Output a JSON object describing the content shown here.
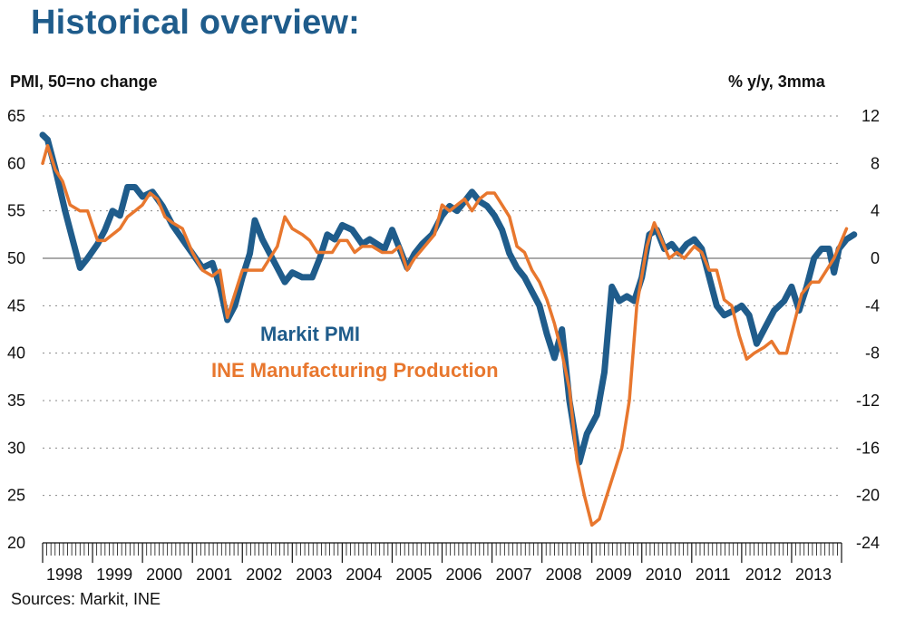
{
  "page": {
    "title": "Historical overview:",
    "source": "Sources: Markit, INE"
  },
  "chart_data": {
    "type": "line",
    "left_axis_label": "PMI, 50=no change",
    "right_axis_label": "% y/y, 3mma",
    "y_left": {
      "min": 20,
      "max": 65,
      "ticks": [
        65,
        60,
        55,
        50,
        45,
        40,
        35,
        30,
        25,
        20
      ]
    },
    "y_right": {
      "min": -24,
      "max": 12,
      "ticks": [
        12,
        8,
        4,
        0,
        -4,
        -8,
        -12,
        -16,
        -20,
        -24
      ]
    },
    "x_start": 1998.0,
    "x_end": 2014.0,
    "years": [
      "1998",
      "1999",
      "2000",
      "2001",
      "2002",
      "2003",
      "2004",
      "2005",
      "2006",
      "2007",
      "2008",
      "2009",
      "2010",
      "2011",
      "2012",
      "2013"
    ],
    "colors": {
      "pmi": "#1f5c8b",
      "ine": "#e8772e",
      "grid": "#888888"
    },
    "series": [
      {
        "name": "Markit PMI",
        "axis": "left",
        "points": [
          [
            1998.0,
            63.0
          ],
          [
            1998.1,
            62.5
          ],
          [
            1998.25,
            59.5
          ],
          [
            1998.45,
            55.0
          ],
          [
            1998.6,
            52.0
          ],
          [
            1998.75,
            49.0
          ],
          [
            1998.9,
            50.0
          ],
          [
            1999.1,
            51.5
          ],
          [
            1999.25,
            53.0
          ],
          [
            1999.4,
            55.0
          ],
          [
            1999.55,
            54.5
          ],
          [
            1999.7,
            57.5
          ],
          [
            1999.85,
            57.5
          ],
          [
            2000.0,
            56.5
          ],
          [
            2000.2,
            57.0
          ],
          [
            2000.4,
            55.5
          ],
          [
            2000.6,
            53.5
          ],
          [
            2000.8,
            52.0
          ],
          [
            2001.0,
            50.5
          ],
          [
            2001.2,
            49.0
          ],
          [
            2001.4,
            49.5
          ],
          [
            2001.55,
            47.0
          ],
          [
            2001.7,
            43.5
          ],
          [
            2001.85,
            45.0
          ],
          [
            2002.0,
            48.0
          ],
          [
            2002.15,
            50.5
          ],
          [
            2002.25,
            54.0
          ],
          [
            2002.4,
            52.0
          ],
          [
            2002.55,
            50.5
          ],
          [
            2002.7,
            49.0
          ],
          [
            2002.85,
            47.5
          ],
          [
            2003.0,
            48.5
          ],
          [
            2003.2,
            48.0
          ],
          [
            2003.4,
            48.0
          ],
          [
            2003.55,
            50.0
          ],
          [
            2003.7,
            52.5
          ],
          [
            2003.85,
            52.0
          ],
          [
            2004.0,
            53.5
          ],
          [
            2004.2,
            53.0
          ],
          [
            2004.4,
            51.5
          ],
          [
            2004.55,
            52.0
          ],
          [
            2004.7,
            51.5
          ],
          [
            2004.85,
            51.0
          ],
          [
            2005.0,
            53.0
          ],
          [
            2005.15,
            51.0
          ],
          [
            2005.3,
            49.0
          ],
          [
            2005.45,
            50.5
          ],
          [
            2005.6,
            51.5
          ],
          [
            2005.8,
            52.5
          ],
          [
            2006.0,
            54.5
          ],
          [
            2006.15,
            55.5
          ],
          [
            2006.3,
            55.0
          ],
          [
            2006.45,
            56.0
          ],
          [
            2006.6,
            57.0
          ],
          [
            2006.75,
            56.0
          ],
          [
            2006.9,
            55.5
          ],
          [
            2007.05,
            54.5
          ],
          [
            2007.2,
            53.0
          ],
          [
            2007.35,
            50.5
          ],
          [
            2007.5,
            49.0
          ],
          [
            2007.65,
            48.0
          ],
          [
            2007.8,
            46.5
          ],
          [
            2007.95,
            45.0
          ],
          [
            2008.1,
            42.0
          ],
          [
            2008.25,
            39.5
          ],
          [
            2008.4,
            42.5
          ],
          [
            2008.55,
            35.0
          ],
          [
            2008.75,
            28.5
          ],
          [
            2008.9,
            31.5
          ],
          [
            2009.1,
            33.5
          ],
          [
            2009.25,
            38.0
          ],
          [
            2009.4,
            47.0
          ],
          [
            2009.55,
            45.5
          ],
          [
            2009.7,
            46.0
          ],
          [
            2009.85,
            45.5
          ],
          [
            2010.0,
            48.0
          ],
          [
            2010.15,
            52.5
          ],
          [
            2010.3,
            53.0
          ],
          [
            2010.45,
            51.0
          ],
          [
            2010.6,
            51.5
          ],
          [
            2010.75,
            50.5
          ],
          [
            2010.9,
            51.5
          ],
          [
            2011.05,
            52.0
          ],
          [
            2011.2,
            51.0
          ],
          [
            2011.35,
            48.0
          ],
          [
            2011.5,
            45.0
          ],
          [
            2011.65,
            44.0
          ],
          [
            2011.85,
            44.5
          ],
          [
            2012.0,
            45.0
          ],
          [
            2012.15,
            44.0
          ],
          [
            2012.3,
            41.0
          ],
          [
            2012.5,
            43.0
          ],
          [
            2012.65,
            44.5
          ],
          [
            2012.85,
            45.5
          ],
          [
            2013.0,
            47.0
          ],
          [
            2013.15,
            44.5
          ],
          [
            2013.3,
            47.0
          ],
          [
            2013.45,
            50.0
          ],
          [
            2013.6,
            51.0
          ],
          [
            2013.75,
            51.0
          ],
          [
            2013.85,
            48.5
          ],
          [
            2013.95,
            51.0
          ],
          [
            2014.1,
            52.0
          ],
          [
            2014.25,
            52.5
          ]
        ]
      },
      {
        "name": "INE Manufacturing Production",
        "axis": "right",
        "points": [
          [
            1998.0,
            8.0
          ],
          [
            1998.1,
            9.5
          ],
          [
            1998.25,
            7.5
          ],
          [
            1998.4,
            6.5
          ],
          [
            1998.55,
            4.5
          ],
          [
            1998.75,
            4.0
          ],
          [
            1998.9,
            4.0
          ],
          [
            1999.1,
            1.5
          ],
          [
            1999.25,
            1.5
          ],
          [
            1999.4,
            2.0
          ],
          [
            1999.55,
            2.5
          ],
          [
            1999.7,
            3.5
          ],
          [
            1999.85,
            4.0
          ],
          [
            2000.0,
            4.5
          ],
          [
            2000.15,
            5.5
          ],
          [
            2000.3,
            5.0
          ],
          [
            2000.45,
            3.5
          ],
          [
            2000.6,
            3.0
          ],
          [
            2000.8,
            2.5
          ],
          [
            2001.0,
            0.5
          ],
          [
            2001.2,
            -1.0
          ],
          [
            2001.4,
            -1.5
          ],
          [
            2001.55,
            -1.0
          ],
          [
            2001.7,
            -5.0
          ],
          [
            2001.85,
            -3.0
          ],
          [
            2002.0,
            -1.0
          ],
          [
            2002.2,
            -1.0
          ],
          [
            2002.4,
            -1.0
          ],
          [
            2002.55,
            0.0
          ],
          [
            2002.7,
            1.0
          ],
          [
            2002.85,
            3.5
          ],
          [
            2003.0,
            2.5
          ],
          [
            2003.2,
            2.0
          ],
          [
            2003.35,
            1.5
          ],
          [
            2003.5,
            0.5
          ],
          [
            2003.65,
            0.5
          ],
          [
            2003.8,
            0.5
          ],
          [
            2003.95,
            1.5
          ],
          [
            2004.1,
            1.5
          ],
          [
            2004.25,
            0.5
          ],
          [
            2004.4,
            1.0
          ],
          [
            2004.6,
            1.0
          ],
          [
            2004.8,
            0.5
          ],
          [
            2005.0,
            0.5
          ],
          [
            2005.15,
            1.0
          ],
          [
            2005.3,
            -1.0
          ],
          [
            2005.45,
            0.0
          ],
          [
            2005.65,
            1.0
          ],
          [
            2005.85,
            2.0
          ],
          [
            2006.0,
            4.5
          ],
          [
            2006.15,
            4.0
          ],
          [
            2006.3,
            4.5
          ],
          [
            2006.45,
            5.0
          ],
          [
            2006.6,
            4.0
          ],
          [
            2006.75,
            5.0
          ],
          [
            2006.9,
            5.5
          ],
          [
            2007.05,
            5.5
          ],
          [
            2007.2,
            4.5
          ],
          [
            2007.35,
            3.5
          ],
          [
            2007.5,
            1.0
          ],
          [
            2007.65,
            0.5
          ],
          [
            2007.8,
            -1.0
          ],
          [
            2007.95,
            -2.0
          ],
          [
            2008.1,
            -3.5
          ],
          [
            2008.25,
            -5.5
          ],
          [
            2008.4,
            -8.0
          ],
          [
            2008.55,
            -11.0
          ],
          [
            2008.7,
            -17.0
          ],
          [
            2008.85,
            -20.0
          ],
          [
            2009.0,
            -22.5
          ],
          [
            2009.15,
            -22.0
          ],
          [
            2009.3,
            -20.0
          ],
          [
            2009.45,
            -18.0
          ],
          [
            2009.6,
            -16.0
          ],
          [
            2009.75,
            -12.0
          ],
          [
            2009.9,
            -4.0
          ],
          [
            2010.1,
            1.0
          ],
          [
            2010.25,
            3.0
          ],
          [
            2010.4,
            1.5
          ],
          [
            2010.55,
            0.0
          ],
          [
            2010.7,
            0.5
          ],
          [
            2010.85,
            0.0
          ],
          [
            2011.05,
            1.0
          ],
          [
            2011.2,
            0.5
          ],
          [
            2011.35,
            -1.0
          ],
          [
            2011.5,
            -1.0
          ],
          [
            2011.65,
            -3.5
          ],
          [
            2011.8,
            -4.0
          ],
          [
            2011.95,
            -6.5
          ],
          [
            2012.1,
            -8.5
          ],
          [
            2012.25,
            -8.0
          ],
          [
            2012.45,
            -7.5
          ],
          [
            2012.6,
            -7.0
          ],
          [
            2012.75,
            -8.0
          ],
          [
            2012.9,
            -8.0
          ],
          [
            2013.05,
            -5.5
          ],
          [
            2013.2,
            -3.0
          ],
          [
            2013.4,
            -2.0
          ],
          [
            2013.55,
            -2.0
          ],
          [
            2013.7,
            -1.0
          ],
          [
            2013.85,
            0.0
          ],
          [
            2013.95,
            1.0
          ],
          [
            2014.1,
            2.5
          ]
        ]
      }
    ]
  }
}
